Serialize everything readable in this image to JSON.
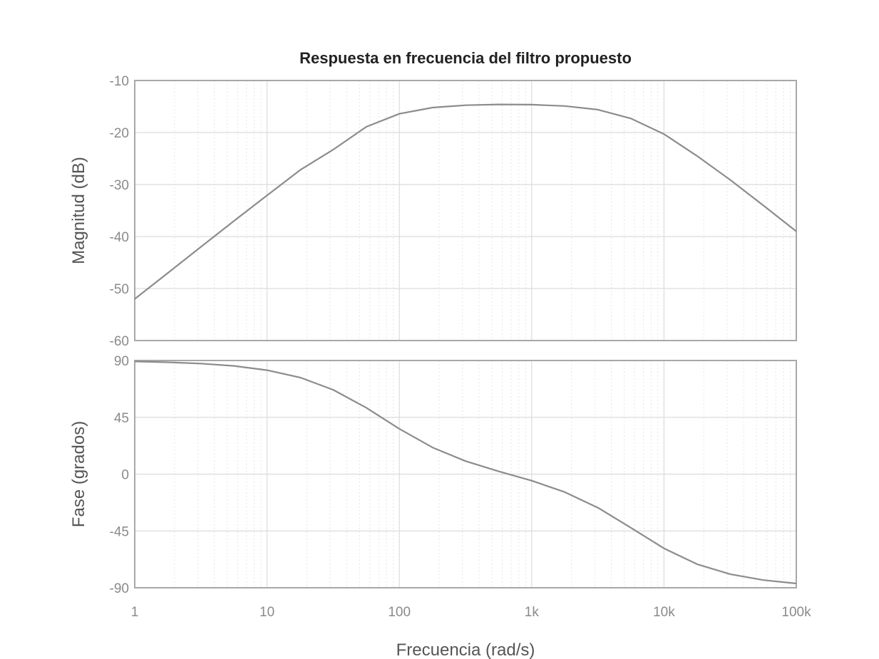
{
  "chart_data": [
    {
      "type": "line",
      "title": "Respuesta en frecuencia del filtro propuesto",
      "xlabel": "",
      "ylabel": "Magnitud (dB)",
      "xscale": "log",
      "xlim": [
        1,
        100000
      ],
      "ylim": [
        -60,
        -10
      ],
      "yticks": [
        -10,
        -20,
        -30,
        -40,
        -50,
        -60
      ],
      "yticklabels": [
        "-10",
        "-20",
        "-30",
        "-40",
        "-50",
        "-60"
      ],
      "grid": true,
      "line_color": "#8c8c8c",
      "x": [
        1,
        1.78,
        3.16,
        5.62,
        10,
        17.8,
        31.6,
        56.2,
        100,
        178,
        316,
        562,
        1000,
        1778,
        3162,
        5623,
        10000,
        17783,
        31623,
        56234,
        100000
      ],
      "values": [
        -52.0,
        -47.0,
        -42.0,
        -37.0,
        -32.1,
        -27.2,
        -23.3,
        -18.9,
        -16.4,
        -15.2,
        -14.75,
        -14.6,
        -14.65,
        -14.9,
        -15.6,
        -17.3,
        -20.3,
        -24.5,
        -29.1,
        -34.0,
        -39.0
      ]
    },
    {
      "type": "line",
      "xlabel": "Frecuencia  (rad/s)",
      "ylabel": "Fase (grados)",
      "xscale": "log",
      "xlim": [
        1,
        100000
      ],
      "xticks": [
        1,
        10,
        100,
        1000,
        10000,
        100000
      ],
      "xticklabels": [
        "1",
        "10",
        "100",
        "1k",
        "10k",
        "100k"
      ],
      "ylim": [
        -90,
        90
      ],
      "yticks": [
        90,
        45,
        0,
        -45,
        -90
      ],
      "yticklabels": [
        "90",
        "45",
        "0",
        "-45",
        "-90"
      ],
      "grid": true,
      "line_color": "#8c8c8c",
      "x": [
        1,
        1.78,
        3.16,
        5.62,
        10,
        17.8,
        31.6,
        56.2,
        100,
        178,
        316,
        562,
        1000,
        1778,
        3162,
        5623,
        10000,
        17783,
        31623,
        56234,
        100000
      ],
      "values": [
        89.2,
        88.6,
        87.6,
        85.7,
        82.3,
        76.5,
        66.8,
        52.6,
        35.9,
        21.1,
        10.3,
        2.2,
        -5.2,
        -14.2,
        -26.6,
        -42.5,
        -58.8,
        -71.3,
        -79.2,
        -83.9,
        -86.6
      ]
    }
  ]
}
